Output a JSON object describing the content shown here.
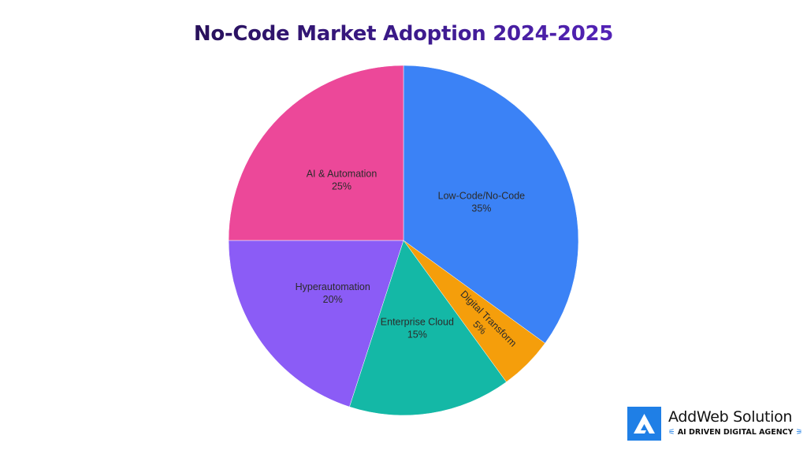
{
  "chart_data": {
    "type": "pie",
    "title": "No-Code Market Adoption 2024-2025",
    "start_angle": "top",
    "direction": "clockwise",
    "slices": [
      {
        "label": "Low-Code/No-Code",
        "value": 35,
        "value_label": "35%",
        "color": "#3b82f6"
      },
      {
        "label": "Digital Transform",
        "value": 5,
        "value_label": "5%",
        "color": "#f59e0b"
      },
      {
        "label": "Enterprise Cloud",
        "value": 15,
        "value_label": "15%",
        "color": "#14b8a6"
      },
      {
        "label": "Hyperautomation",
        "value": 20,
        "value_label": "20%",
        "color": "#8b5cf6"
      },
      {
        "label": "AI & Automation",
        "value": 25,
        "value_label": "25%",
        "color": "#ec4899"
      }
    ]
  },
  "logo": {
    "name": "AddWeb Solution",
    "tagline": "AI DRIVEN DIGITAL AGENCY",
    "color": "#1f7fe6"
  }
}
